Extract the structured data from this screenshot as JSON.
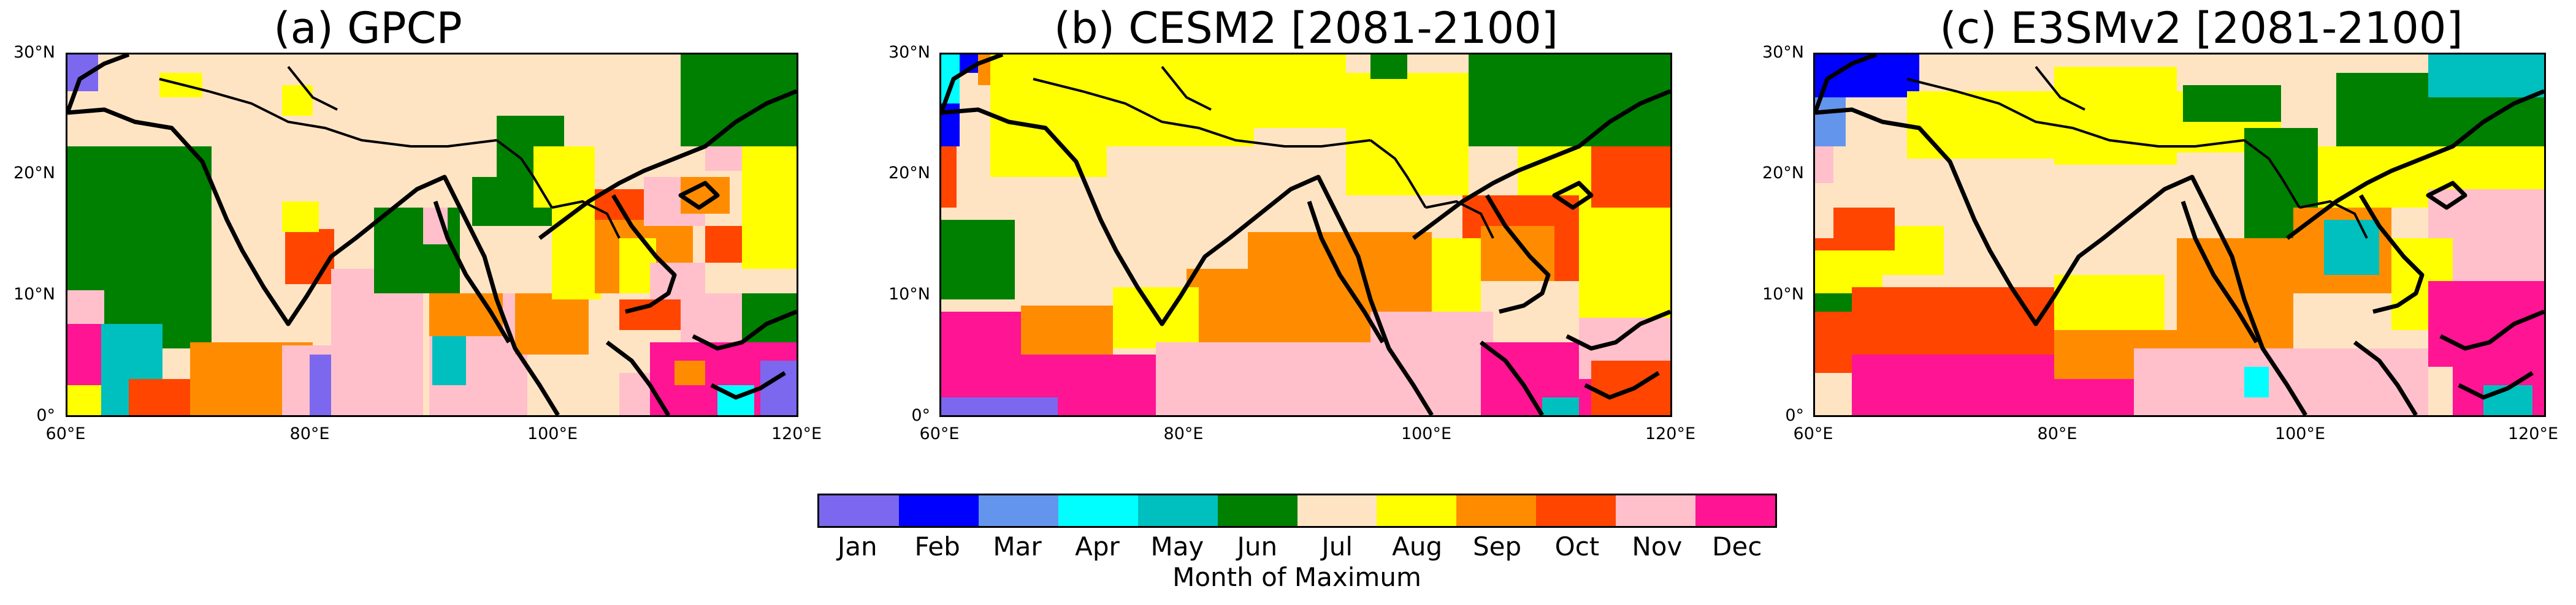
{
  "panels": [
    {
      "title": "(a) GPCP"
    },
    {
      "title": "(b) CESM2 [2081-2100]"
    },
    {
      "title": "(c) E3SMv2 [2081-2100]"
    }
  ],
  "axes": {
    "yticks": [
      "30°N",
      "20°N",
      "10°N",
      "0°"
    ],
    "xticks": [
      "60°E",
      "80°E",
      "100°E",
      "120°E"
    ],
    "lat_range": [
      0,
      30
    ],
    "lon_range": [
      60,
      120
    ]
  },
  "colorbar": {
    "title": "Month of Maximum",
    "months": [
      {
        "label": "Jan",
        "color": "#7b68ee"
      },
      {
        "label": "Feb",
        "color": "#0000ff"
      },
      {
        "label": "Mar",
        "color": "#6495ed"
      },
      {
        "label": "Apr",
        "color": "#00ffff"
      },
      {
        "label": "May",
        "color": "#00bfbf"
      },
      {
        "label": "Jun",
        "color": "#008000"
      },
      {
        "label": "Jul",
        "color": "#ffe4c4"
      },
      {
        "label": "Aug",
        "color": "#ffff00"
      },
      {
        "label": "Sep",
        "color": "#ff8c00"
      },
      {
        "label": "Oct",
        "color": "#ff4500"
      },
      {
        "label": "Nov",
        "color": "#ffc0cb"
      },
      {
        "label": "Dec",
        "color": "#ff1493"
      }
    ]
  }
}
